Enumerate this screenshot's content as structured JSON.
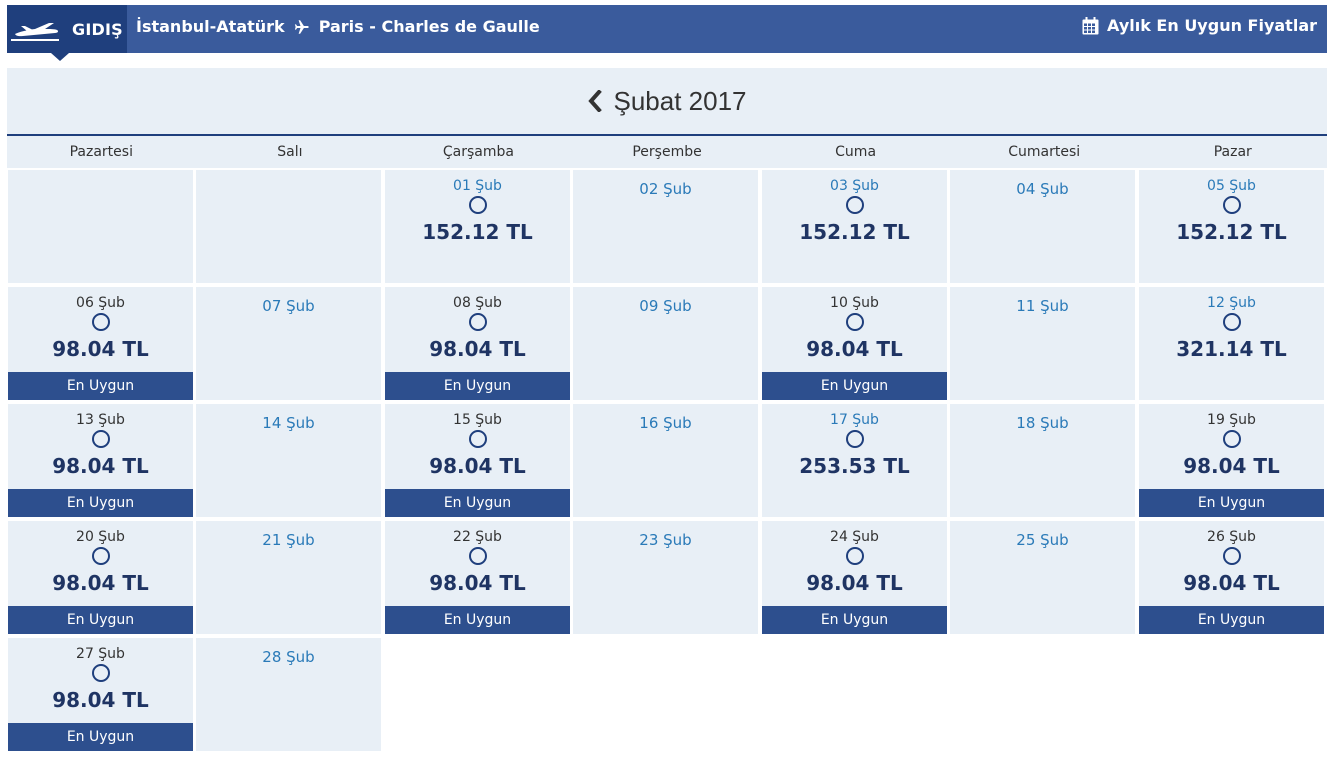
{
  "header": {
    "direction_label": "GIDIŞ",
    "origin": "İstanbul-Atatürk",
    "destination": "Paris - Charles de Gaulle",
    "monthly_label": "Aylık En Uygun Fiyatlar"
  },
  "calendar": {
    "month_title": "Şubat 2017",
    "weekdays": [
      "Pazartesi",
      "Salı",
      "Çarşamba",
      "Perşembe",
      "Cuma",
      "Cumartesi",
      "Pazar"
    ],
    "best_label": "En Uygun",
    "days": [
      {
        "date": "01 Şub",
        "price": "152.12 TL",
        "best": false
      },
      {
        "date": "02 Şub",
        "price": null,
        "best": false
      },
      {
        "date": "03 Şub",
        "price": "152.12 TL",
        "best": false
      },
      {
        "date": "04 Şub",
        "price": null,
        "best": false
      },
      {
        "date": "05 Şub",
        "price": "152.12 TL",
        "best": false
      },
      {
        "date": "06 Şub",
        "price": "98.04 TL",
        "best": true
      },
      {
        "date": "07 Şub",
        "price": null,
        "best": false
      },
      {
        "date": "08 Şub",
        "price": "98.04 TL",
        "best": true
      },
      {
        "date": "09 Şub",
        "price": null,
        "best": false
      },
      {
        "date": "10 Şub",
        "price": "98.04 TL",
        "best": true
      },
      {
        "date": "11 Şub",
        "price": null,
        "best": false
      },
      {
        "date": "12 Şub",
        "price": "321.14 TL",
        "best": false
      },
      {
        "date": "13 Şub",
        "price": "98.04 TL",
        "best": true
      },
      {
        "date": "14 Şub",
        "price": null,
        "best": false
      },
      {
        "date": "15 Şub",
        "price": "98.04 TL",
        "best": true
      },
      {
        "date": "16 Şub",
        "price": null,
        "best": false
      },
      {
        "date": "17 Şub",
        "price": "253.53 TL",
        "best": false
      },
      {
        "date": "18 Şub",
        "price": null,
        "best": false
      },
      {
        "date": "19 Şub",
        "price": "98.04 TL",
        "best": true
      },
      {
        "date": "20 Şub",
        "price": "98.04 TL",
        "best": true
      },
      {
        "date": "21 Şub",
        "price": null,
        "best": false
      },
      {
        "date": "22 Şub",
        "price": "98.04 TL",
        "best": true
      },
      {
        "date": "23 Şub",
        "price": null,
        "best": false
      },
      {
        "date": "24 Şub",
        "price": "98.04 TL",
        "best": true
      },
      {
        "date": "25 Şub",
        "price": null,
        "best": false
      },
      {
        "date": "26 Şub",
        "price": "98.04 TL",
        "best": true
      },
      {
        "date": "27 Şub",
        "price": "98.04 TL",
        "best": true
      },
      {
        "date": "28 Şub",
        "price": null,
        "best": false
      }
    ]
  },
  "colors": {
    "header_bar": "#3a5b9c",
    "direction_tab": "#1f3f7d",
    "cell_bg": "#e8eff6",
    "best_bar": "#2d4f8e",
    "price_text": "#1f3463",
    "date_link": "#2a7ab8"
  },
  "icons": {
    "direction": "airplane-takeoff-icon",
    "route_separator": "airplane-icon",
    "monthly": "calendar-icon",
    "previous_month": "chevron-left-icon"
  }
}
